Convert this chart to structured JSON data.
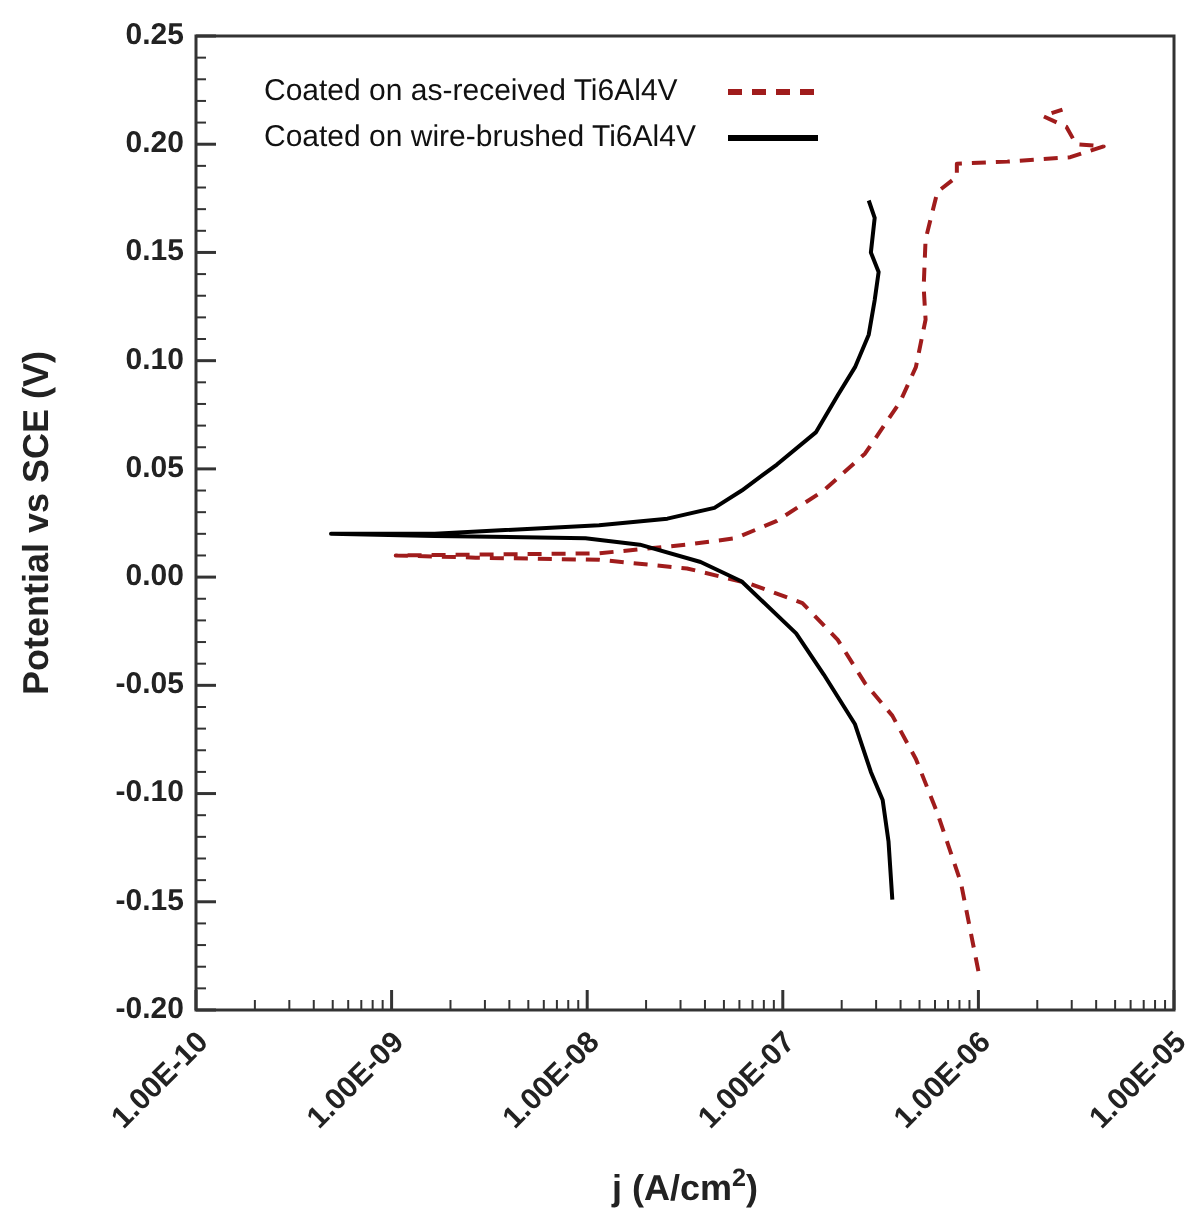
{
  "chart_data": {
    "type": "line",
    "xlabel": "j (A/cm$^{2}$)",
    "ylabel": "Potential vs SCE (V)",
    "log": "x",
    "legend": "top left",
    "grid": false,
    "xlim": [
      1e-10,
      1e-05
    ],
    "ylim": [
      -0.2,
      0.25
    ],
    "xticks": [
      {
        "value": 1e-10,
        "label": "1.00E-10"
      },
      {
        "value": 1e-09,
        "label": "1.00E-09"
      },
      {
        "value": 1e-08,
        "label": "1.00E-08"
      },
      {
        "value": 1e-07,
        "label": "1.00E-07"
      },
      {
        "value": 1e-06,
        "label": "1.00E-06"
      },
      {
        "value": 1e-05,
        "label": "1.00E-05"
      }
    ],
    "yticks": [
      {
        "value": -0.2,
        "label": "-0.20"
      },
      {
        "value": -0.15,
        "label": "-0.15"
      },
      {
        "value": -0.1,
        "label": "-0.10"
      },
      {
        "value": -0.05,
        "label": "-0.05"
      },
      {
        "value": 0,
        "label": "0.00"
      },
      {
        "value": 0.05,
        "label": "0.05"
      },
      {
        "value": 0.1,
        "label": "0.10"
      },
      {
        "value": 0.15,
        "label": "0.15"
      },
      {
        "value": 0.2,
        "label": "0.20"
      },
      {
        "value": 0.25,
        "label": "0.25"
      }
    ],
    "series": [
      {
        "name": "Coated on as-received Ti6Al4V",
        "color": "#a01c1c",
        "line_style": "dashed",
        "x": [
          1e-06,
          8.13e-07,
          6.17e-07,
          4.79e-07,
          3.63e-07,
          2.63e-07,
          1.91e-07,
          1.26e-07,
          6.76e-08,
          3.24e-08,
          1.15e-08,
          2.69e-09,
          1.05e-09,
          1.15e-08,
          3.24e-08,
          5.75e-08,
          9.33e-08,
          1.62e-07,
          2.63e-07,
          3.98e-07,
          4.79e-07,
          5.37e-07,
          5.25e-07,
          5.37e-07,
          6.17e-07,
          7.76e-07,
          7.76e-07,
          1.41e-06,
          2.95e-06,
          4.37e-06,
          3.16e-06,
          2.82e-06,
          2.14e-06,
          2.69e-06
        ],
        "values": [
          -0.182,
          -0.141,
          -0.109,
          -0.084,
          -0.064,
          -0.049,
          -0.029,
          -0.012,
          -0.003,
          0.004,
          0.008,
          0.009,
          0.01,
          0.011,
          0.015,
          0.018,
          0.026,
          0.04,
          0.057,
          0.081,
          0.097,
          0.119,
          0.134,
          0.156,
          0.178,
          0.185,
          0.191,
          0.192,
          0.194,
          0.199,
          0.2,
          0.208,
          0.213,
          0.216
        ]
      },
      {
        "name": "Coated on wire-brushed Ti6Al4V",
        "color": "#000000",
        "line_style": "solid",
        "x": [
          3.63e-07,
          3.47e-07,
          3.24e-07,
          2.82e-07,
          2.34e-07,
          1.62e-07,
          1.17e-07,
          6.17e-08,
          3.8e-08,
          1.86e-08,
          9.8e-09,
          1.66e-09,
          4.9e-10,
          1.66e-09,
          1.15e-08,
          2.57e-08,
          4.47e-08,
          6.17e-08,
          9.33e-08,
          1.48e-07,
          1.91e-07,
          2.34e-07,
          2.75e-07,
          2.95e-07,
          3.09e-07,
          2.82e-07,
          2.95e-07,
          2.75e-07
        ],
        "values": [
          -0.149,
          -0.122,
          -0.103,
          -0.09,
          -0.068,
          -0.045,
          -0.026,
          -0.002,
          0.007,
          0.015,
          0.018,
          0.019,
          0.02,
          0.02,
          0.024,
          0.027,
          0.032,
          0.04,
          0.052,
          0.067,
          0.084,
          0.097,
          0.112,
          0.128,
          0.141,
          0.15,
          0.166,
          0.174
        ]
      }
    ]
  }
}
